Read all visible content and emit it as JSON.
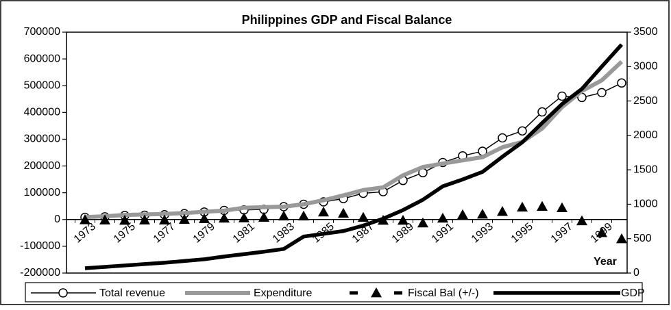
{
  "chart_data": {
    "type": "line",
    "title": "Philippines GDP and Fiscal Balance",
    "xlabel": "Year",
    "categories": [
      "1973",
      null,
      "1975",
      null,
      "1977",
      null,
      "1979",
      null,
      "1981",
      null,
      "1983",
      null,
      "1985",
      null,
      "1987",
      null,
      "1989",
      null,
      "1991",
      null,
      "1993",
      null,
      "1995",
      null,
      "1997",
      null,
      "1999",
      null
    ],
    "series": [
      {
        "name": "Total revenue",
        "color": "#000000",
        "marker": "circle",
        "values": [
          8000,
          10000,
          15000,
          16000,
          18000,
          22000,
          28000,
          34000,
          36000,
          38000,
          48000,
          57000,
          66000,
          78000,
          98000,
          104000,
          146000,
          175000,
          213000,
          238000,
          255000,
          305000,
          331000,
          402000,
          461000,
          456000,
          474000,
          510000
        ]
      },
      {
        "name": "Expenditure",
        "color": "#999999",
        "marker": "none",
        "values": [
          9000,
          12000,
          17000,
          19000,
          21000,
          24000,
          29000,
          33000,
          44000,
          46000,
          48000,
          57000,
          72000,
          90000,
          110000,
          120000,
          165000,
          196000,
          209000,
          221000,
          233000,
          270000,
          290000,
          340000,
          420000,
          480000,
          520000,
          590000
        ]
      },
      {
        "name": "Fiscal Bal (+/-)",
        "color": "#000000",
        "marker": "triangle",
        "values": [
          -1000,
          -2000,
          -3000,
          -2000,
          -2000,
          0,
          3000,
          5000,
          6000,
          8000,
          13000,
          13000,
          28000,
          23000,
          8000,
          -3000,
          -3000,
          -13000,
          5000,
          18000,
          20000,
          30000,
          46000,
          49000,
          44000,
          -5000,
          -49000,
          -72000
        ]
      },
      {
        "name": "GDP",
        "color": "#000000",
        "marker": "none",
        "axis": "y2",
        "values": [
          70,
          90,
          110,
          130,
          150,
          175,
          200,
          240,
          275,
          310,
          350,
          530,
          570,
          610,
          690,
          790,
          915,
          1065,
          1260,
          1360,
          1470,
          1690,
          1900,
          2180,
          2455,
          2675,
          3000,
          3320
        ]
      }
    ],
    "ylim": [
      -200000,
      700000
    ],
    "yticks": [
      -200000,
      -100000,
      0,
      100000,
      200000,
      300000,
      400000,
      500000,
      600000,
      700000
    ],
    "y2lim": [
      0,
      3500
    ],
    "y2ticks": [
      0,
      500,
      1000,
      1500,
      2000,
      2500,
      3000,
      3500
    ],
    "legend": "bottom"
  }
}
